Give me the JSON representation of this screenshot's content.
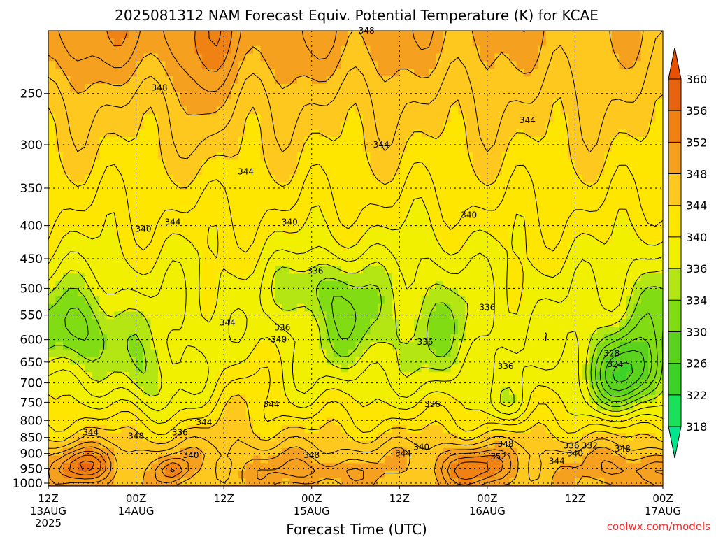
{
  "chart_data": {
    "type": "heatmap",
    "title": "2025081312 NAM Forecast Equiv. Potential Temperature (K) for KCAE",
    "xlabel": "Forecast Time (UTC)",
    "credit": "coolwx.com/models",
    "y_ticks": [
      250,
      300,
      350,
      400,
      450,
      500,
      550,
      600,
      650,
      700,
      750,
      800,
      850,
      900,
      950,
      1000
    ],
    "y_range_hPa": [
      1010,
      200
    ],
    "x_ticks": [
      {
        "h": 0,
        "line1": "12Z",
        "line2": "13AUG",
        "line3": "2025"
      },
      {
        "h": 12,
        "line1": "00Z",
        "line2": "14AUG",
        "line3": ""
      },
      {
        "h": 24,
        "line1": "12Z",
        "line2": "",
        "line3": ""
      },
      {
        "h": 36,
        "line1": "00Z",
        "line2": "15AUG",
        "line3": ""
      },
      {
        "h": 48,
        "line1": "12Z",
        "line2": "",
        "line3": ""
      },
      {
        "h": 60,
        "line1": "00Z",
        "line2": "16AUG",
        "line3": ""
      },
      {
        "h": 72,
        "line1": "12Z",
        "line2": "",
        "line3": ""
      },
      {
        "h": 84,
        "line1": "00Z",
        "line2": "17AUG",
        "line3": ""
      }
    ],
    "x_range_h": [
      0,
      84
    ],
    "colorbar": {
      "labels": [
        318,
        322,
        326,
        330,
        334,
        336,
        340,
        344,
        348,
        352,
        356,
        360
      ],
      "colors": [
        "#00e68c",
        "#19e15a",
        "#3cd228",
        "#5ad21e",
        "#82dc14",
        "#b4e614",
        "#f0f000",
        "#ffe600",
        "#ffc81e",
        "#f5a01e",
        "#f08214",
        "#e6640f",
        "#e65000"
      ]
    },
    "surface_color": "#a0522d",
    "contour_interval_K": 2,
    "contour_labels": [
      {
        "h": 43.5,
        "p": 200,
        "v": 348
      },
      {
        "h": 15.2,
        "p": 245,
        "v": 348
      },
      {
        "h": 65.5,
        "p": 275,
        "v": 344
      },
      {
        "h": 45.5,
        "p": 300,
        "v": 344
      },
      {
        "h": 27,
        "p": 330,
        "v": 344
      },
      {
        "h": 17,
        "p": 395,
        "v": 344
      },
      {
        "h": 13,
        "p": 405,
        "v": 340
      },
      {
        "h": 33,
        "p": 395,
        "v": 340
      },
      {
        "h": 57.5,
        "p": 385,
        "v": 340
      },
      {
        "h": 36.5,
        "p": 470,
        "v": 336
      },
      {
        "h": 24.5,
        "p": 565,
        "v": 344
      },
      {
        "h": 32,
        "p": 575,
        "v": 336
      },
      {
        "h": 31.5,
        "p": 600,
        "v": 340
      },
      {
        "h": 51.5,
        "p": 605,
        "v": 336
      },
      {
        "h": 60,
        "p": 535,
        "v": 336
      },
      {
        "h": 62.5,
        "p": 660,
        "v": 336
      },
      {
        "h": 52.5,
        "p": 755,
        "v": 336
      },
      {
        "h": 77,
        "p": 630,
        "v": 328
      },
      {
        "h": 77.5,
        "p": 655,
        "v": 324
      },
      {
        "h": 30.5,
        "p": 755,
        "v": 344
      },
      {
        "h": 21.3,
        "p": 805,
        "v": 344
      },
      {
        "h": 5.8,
        "p": 835,
        "v": 344
      },
      {
        "h": 12,
        "p": 845,
        "v": 348
      },
      {
        "h": 18,
        "p": 835,
        "v": 336
      },
      {
        "h": 19.5,
        "p": 905,
        "v": 340
      },
      {
        "h": 36,
        "p": 905,
        "v": 348
      },
      {
        "h": 51,
        "p": 880,
        "v": 340
      },
      {
        "h": 48.5,
        "p": 900,
        "v": 344
      },
      {
        "h": 61.5,
        "p": 910,
        "v": 352
      },
      {
        "h": 62.5,
        "p": 870,
        "v": 348
      },
      {
        "h": 71.5,
        "p": 875,
        "v": 336
      },
      {
        "h": 74,
        "p": 875,
        "v": 332
      },
      {
        "h": 78.5,
        "p": 885,
        "v": 348
      },
      {
        "h": 72,
        "p": 900,
        "v": 340
      },
      {
        "h": 69.5,
        "p": 925,
        "v": 344
      }
    ],
    "field_blobs": [
      {
        "h": 0,
        "p": 200,
        "sh": 60,
        "sp": 40,
        "amt": 4
      },
      {
        "h": 22,
        "p": 240,
        "sh": 3,
        "sp": 90,
        "amt": 3
      },
      {
        "h": 4,
        "p": 580,
        "sh": 6,
        "sp": 90,
        "amt": -7
      },
      {
        "h": 14,
        "p": 700,
        "sh": 4,
        "sp": 90,
        "amt": -5
      },
      {
        "h": 36,
        "p": 500,
        "sh": 5,
        "sp": 60,
        "amt": -5
      },
      {
        "h": 42,
        "p": 560,
        "sh": 5,
        "sp": 120,
        "amt": -5
      },
      {
        "h": 53,
        "p": 560,
        "sh": 5,
        "sp": 140,
        "amt": -4
      },
      {
        "h": 63,
        "p": 760,
        "sh": 3,
        "sp": 50,
        "amt": -4
      },
      {
        "h": 79,
        "p": 680,
        "sh": 5,
        "sp": 100,
        "amt": -13
      },
      {
        "h": 83,
        "p": 500,
        "sh": 4,
        "sp": 80,
        "amt": -5
      },
      {
        "h": 5,
        "p": 945,
        "sh": 4,
        "sp": 55,
        "amt": 9
      },
      {
        "h": 17,
        "p": 955,
        "sh": 2,
        "sp": 40,
        "amt": 7
      },
      {
        "h": 58,
        "p": 950,
        "sh": 5,
        "sp": 60,
        "amt": 8
      },
      {
        "h": 36,
        "p": 960,
        "sh": 8,
        "sp": 40,
        "amt": 4
      },
      {
        "h": 81,
        "p": 960,
        "sh": 6,
        "sp": 50,
        "amt": 5
      },
      {
        "h": 27,
        "p": 700,
        "sh": 4,
        "sp": 150,
        "amt": 3
      }
    ]
  }
}
